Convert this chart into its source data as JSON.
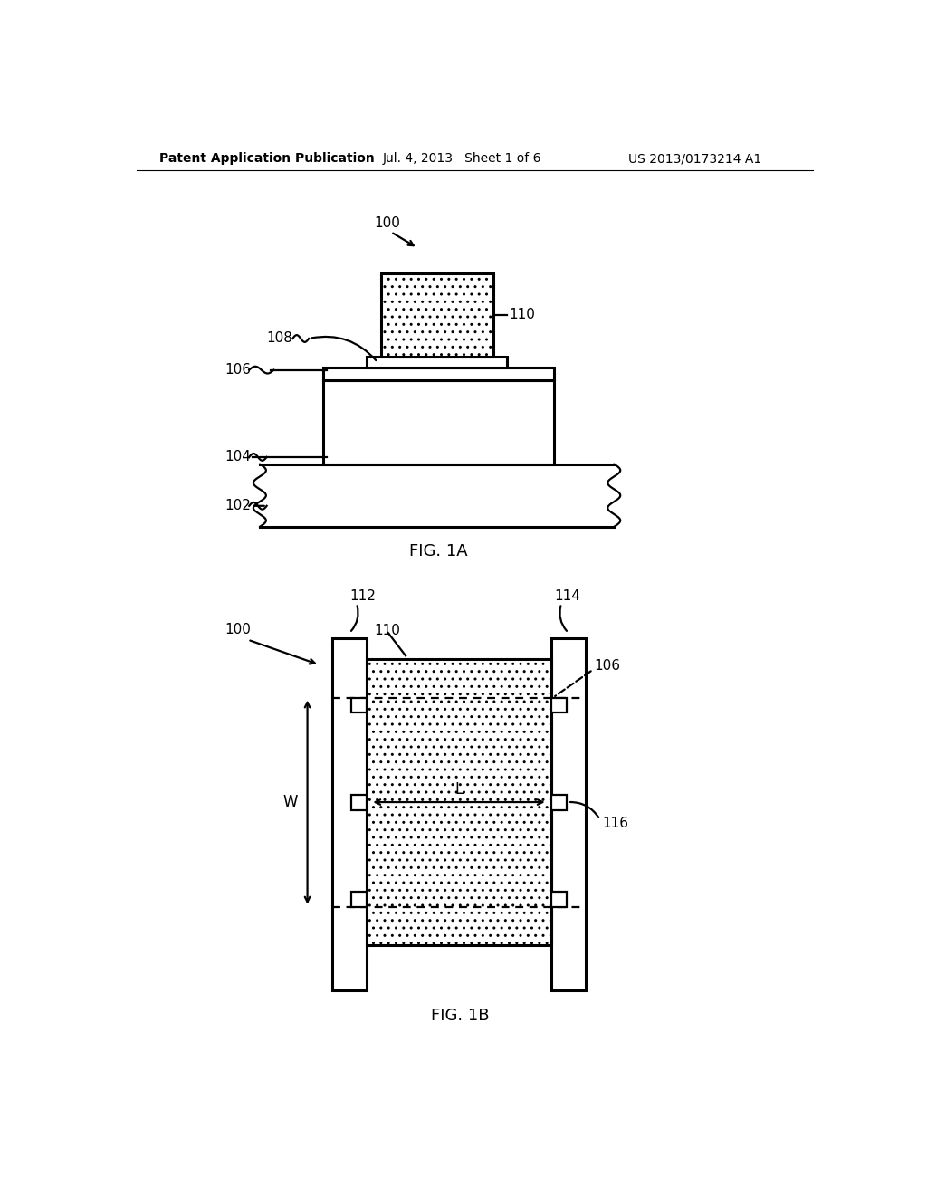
{
  "bg_color": "#ffffff",
  "line_color": "#000000",
  "header": {
    "left": "Patent Application Publication",
    "center": "Jul. 4, 2013   Sheet 1 of 6",
    "right": "US 2013/0173214 A1"
  },
  "fig1a_caption": "FIG. 1A",
  "fig1b_caption": "FIG. 1B",
  "lw": 1.6,
  "lw_thick": 2.2
}
